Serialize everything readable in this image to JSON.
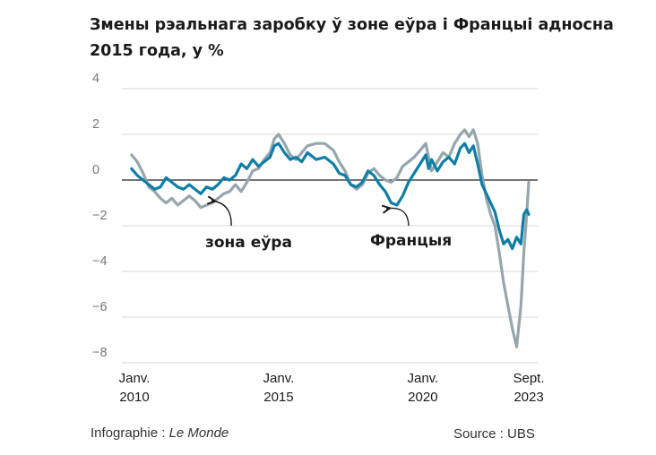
{
  "chart_data": {
    "type": "line",
    "title_lines": [
      "Змены рэальнага заробку ў зоне еўра і Францыі адносна",
      "2015 года, у %"
    ],
    "x_ticks": [
      {
        "x": 2010.0,
        "line1": "Janv.",
        "line2": "2010"
      },
      {
        "x": 2015.0,
        "line1": "Janv.",
        "line2": "2015"
      },
      {
        "x": 2020.0,
        "line1": "Janv.",
        "line2": "2020"
      },
      {
        "x": 2023.67,
        "line1": "Sept.",
        "line2": "2023"
      }
    ],
    "y_ticks": [
      {
        "value": 4,
        "label": "4"
      },
      {
        "value": 2,
        "label": "2"
      },
      {
        "value": 0,
        "label": "0"
      },
      {
        "value": -2,
        "label": "−2"
      },
      {
        "value": -4,
        "label": "−4"
      },
      {
        "value": -6,
        "label": "−6"
      },
      {
        "value": -8,
        "label": "−8"
      }
    ],
    "xlim": [
      2010.0,
      2023.67
    ],
    "ylim": [
      -8,
      4
    ],
    "grid": true,
    "zero_line": true,
    "series": [
      {
        "name": "зона еўра",
        "color": "#97a5ad",
        "points": [
          [
            2009.9,
            1.1
          ],
          [
            2010.1,
            0.8
          ],
          [
            2010.3,
            0.3
          ],
          [
            2010.5,
            -0.3
          ],
          [
            2010.7,
            -0.5
          ],
          [
            2010.9,
            -0.8
          ],
          [
            2011.1,
            -1.0
          ],
          [
            2011.3,
            -0.8
          ],
          [
            2011.5,
            -1.1
          ],
          [
            2011.7,
            -0.9
          ],
          [
            2011.9,
            -0.7
          ],
          [
            2012.1,
            -0.9
          ],
          [
            2012.3,
            -1.2
          ],
          [
            2012.5,
            -1.1
          ],
          [
            2012.7,
            -1.0
          ],
          [
            2012.9,
            -0.8
          ],
          [
            2013.1,
            -0.6
          ],
          [
            2013.3,
            -0.5
          ],
          [
            2013.5,
            -0.2
          ],
          [
            2013.7,
            -0.5
          ],
          [
            2013.9,
            -0.1
          ],
          [
            2014.1,
            0.4
          ],
          [
            2014.3,
            0.5
          ],
          [
            2014.5,
            0.9
          ],
          [
            2014.7,
            1.2
          ],
          [
            2014.85,
            1.8
          ],
          [
            2015.0,
            2.0
          ],
          [
            2015.2,
            1.6
          ],
          [
            2015.4,
            1.1
          ],
          [
            2015.6,
            0.9
          ],
          [
            2015.8,
            1.2
          ],
          [
            2016.0,
            1.5
          ],
          [
            2016.3,
            1.6
          ],
          [
            2016.6,
            1.6
          ],
          [
            2016.9,
            1.3
          ],
          [
            2017.1,
            0.8
          ],
          [
            2017.3,
            0.4
          ],
          [
            2017.5,
            -0.2
          ],
          [
            2017.7,
            -0.4
          ],
          [
            2017.9,
            -0.2
          ],
          [
            2018.1,
            0.3
          ],
          [
            2018.3,
            0.5
          ],
          [
            2018.5,
            0.2
          ],
          [
            2018.7,
            0.0
          ],
          [
            2018.9,
            -0.1
          ],
          [
            2019.1,
            0.1
          ],
          [
            2019.3,
            0.6
          ],
          [
            2019.5,
            0.8
          ],
          [
            2019.7,
            1.0
          ],
          [
            2019.9,
            1.3
          ],
          [
            2020.1,
            1.6
          ],
          [
            2020.2,
            1.0
          ],
          [
            2020.3,
            0.4
          ],
          [
            2020.5,
            0.8
          ],
          [
            2020.7,
            1.2
          ],
          [
            2020.9,
            1.0
          ],
          [
            2021.1,
            1.6
          ],
          [
            2021.3,
            2.0
          ],
          [
            2021.45,
            2.2
          ],
          [
            2021.6,
            1.9
          ],
          [
            2021.75,
            2.2
          ],
          [
            2021.9,
            1.6
          ],
          [
            2022.05,
            0.2
          ],
          [
            2022.2,
            -0.8
          ],
          [
            2022.35,
            -1.5
          ],
          [
            2022.5,
            -2.0
          ],
          [
            2022.65,
            -3.2
          ],
          [
            2022.8,
            -4.5
          ],
          [
            2022.95,
            -5.5
          ],
          [
            2023.1,
            -6.5
          ],
          [
            2023.25,
            -7.3
          ],
          [
            2023.4,
            -5.5
          ],
          [
            2023.5,
            -3.2
          ],
          [
            2023.6,
            -1.5
          ],
          [
            2023.67,
            -0.1
          ]
        ]
      },
      {
        "name": "Францыя",
        "color": "#0f7ea6",
        "points": [
          [
            2009.9,
            0.5
          ],
          [
            2010.1,
            0.2
          ],
          [
            2010.3,
            0.0
          ],
          [
            2010.5,
            -0.2
          ],
          [
            2010.7,
            -0.4
          ],
          [
            2010.9,
            -0.3
          ],
          [
            2011.1,
            0.1
          ],
          [
            2011.3,
            -0.1
          ],
          [
            2011.5,
            -0.3
          ],
          [
            2011.7,
            -0.4
          ],
          [
            2011.9,
            -0.2
          ],
          [
            2012.1,
            -0.4
          ],
          [
            2012.3,
            -0.6
          ],
          [
            2012.5,
            -0.3
          ],
          [
            2012.7,
            -0.4
          ],
          [
            2012.9,
            -0.2
          ],
          [
            2013.1,
            0.1
          ],
          [
            2013.3,
            0.0
          ],
          [
            2013.5,
            0.2
          ],
          [
            2013.7,
            0.7
          ],
          [
            2013.9,
            0.5
          ],
          [
            2014.1,
            0.9
          ],
          [
            2014.3,
            0.6
          ],
          [
            2014.5,
            0.8
          ],
          [
            2014.7,
            1.0
          ],
          [
            2014.85,
            1.5
          ],
          [
            2015.0,
            1.6
          ],
          [
            2015.2,
            1.2
          ],
          [
            2015.4,
            0.9
          ],
          [
            2015.6,
            1.0
          ],
          [
            2015.8,
            0.8
          ],
          [
            2016.0,
            1.2
          ],
          [
            2016.3,
            0.9
          ],
          [
            2016.6,
            1.0
          ],
          [
            2016.9,
            0.7
          ],
          [
            2017.1,
            0.3
          ],
          [
            2017.3,
            0.2
          ],
          [
            2017.5,
            -0.2
          ],
          [
            2017.7,
            -0.3
          ],
          [
            2017.9,
            -0.1
          ],
          [
            2018.1,
            0.4
          ],
          [
            2018.3,
            0.2
          ],
          [
            2018.5,
            -0.2
          ],
          [
            2018.7,
            -0.5
          ],
          [
            2018.9,
            -1.0
          ],
          [
            2019.1,
            -1.1
          ],
          [
            2019.3,
            -0.7
          ],
          [
            2019.5,
            -0.1
          ],
          [
            2019.7,
            0.3
          ],
          [
            2019.9,
            0.7
          ],
          [
            2020.1,
            1.1
          ],
          [
            2020.2,
            0.5
          ],
          [
            2020.3,
            0.9
          ],
          [
            2020.5,
            0.4
          ],
          [
            2020.7,
            0.8
          ],
          [
            2020.9,
            1.0
          ],
          [
            2021.1,
            0.7
          ],
          [
            2021.3,
            1.4
          ],
          [
            2021.45,
            1.6
          ],
          [
            2021.6,
            1.2
          ],
          [
            2021.75,
            1.5
          ],
          [
            2021.9,
            0.7
          ],
          [
            2022.05,
            -0.2
          ],
          [
            2022.2,
            -0.6
          ],
          [
            2022.35,
            -1.0
          ],
          [
            2022.5,
            -1.4
          ],
          [
            2022.65,
            -2.2
          ],
          [
            2022.8,
            -2.8
          ],
          [
            2022.95,
            -2.6
          ],
          [
            2023.1,
            -3.0
          ],
          [
            2023.25,
            -2.5
          ],
          [
            2023.4,
            -2.8
          ],
          [
            2023.5,
            -1.5
          ],
          [
            2023.6,
            -1.3
          ],
          [
            2023.67,
            -1.5
          ]
        ]
      }
    ],
    "annotations": [
      {
        "series": "зона еўра",
        "text": "зона еўра"
      },
      {
        "series": "Францыя",
        "text": "Францыя"
      }
    ]
  },
  "footer": {
    "credit_prefix": "Infographie : ",
    "credit_name": "Le Monde",
    "source": "Source : UBS"
  }
}
